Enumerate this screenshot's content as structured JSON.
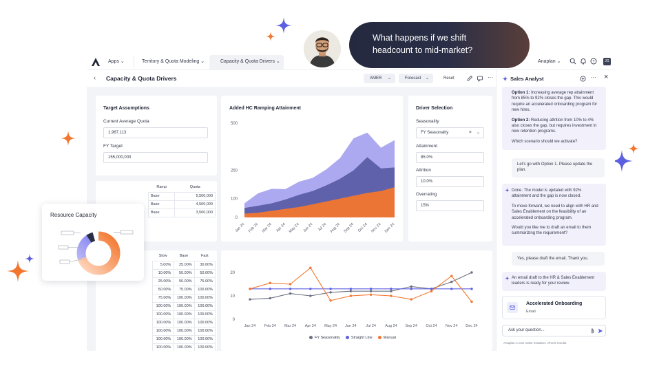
{
  "chat_bubble": {
    "text_line1": "What happens if we shift",
    "text_line2": "headcount to mid-market?"
  },
  "topbar": {
    "apps": "Apps",
    "breadcrumb_1": "Territory & Quota Modeling",
    "breadcrumb_2": "Capacity & Quota Drivers",
    "workspace": "Anaplan",
    "user_initials": "JG"
  },
  "pagebar": {
    "title": "Capacity & Quota Drivers",
    "region_select": "AMER",
    "scenario_select": "Forecast",
    "reset_label": "Reset"
  },
  "target_assumptions": {
    "title": "Target Assumptions",
    "quota_label": "Current Average Quota",
    "quota_value": "1,967,113",
    "target_label": "FY Target",
    "target_value": "155,000,000"
  },
  "ramp_table": {
    "headers": [
      "Ramp",
      "Quota"
    ],
    "rows": [
      [
        "Base",
        "5,500,000"
      ],
      [
        "Base",
        "4,500,000"
      ],
      [
        "Base",
        "3,500,000"
      ]
    ]
  },
  "pct_table": {
    "headers": [
      "Slow",
      "Base",
      "Fast"
    ],
    "rows": [
      [
        "5.00%",
        "25.00%",
        "30.00%"
      ],
      [
        "10.00%",
        "50.00%",
        "50.00%"
      ],
      [
        "25.00%",
        "50.00%",
        "75.00%"
      ],
      [
        "50.00%",
        "75.00%",
        "100.00%"
      ],
      [
        "75.00%",
        "100.00%",
        "100.00%"
      ],
      [
        "100.00%",
        "100.00%",
        "100.00%"
      ],
      [
        "100.00%",
        "100.00%",
        "100.00%"
      ],
      [
        "100.00%",
        "100.00%",
        "100.00%"
      ],
      [
        "100.00%",
        "100.00%",
        "100.00%"
      ],
      [
        "100.00%",
        "100.00%",
        "100.00%"
      ],
      [
        "100.00%",
        "100.00%",
        "100.00%"
      ]
    ]
  },
  "driver_selection": {
    "title": "Driver Selection",
    "seasonality_label": "Seasonality",
    "seasonality_value": "FY Seasonality",
    "attainment_label": "Attainment",
    "attainment_value": "85.0%",
    "attrition_label": "Attrition",
    "attrition_value": "10.0%",
    "overrating_label": "Overrating",
    "overrating_value": "15%"
  },
  "side_panel": {
    "title": "Sales Analyst",
    "m1_opt1_bold": "Option 1:",
    "m1_opt1_text": " Increasing average rep attainment from 85% to 92% closes the gap. This would require an accelerated onboarding program for new hires.",
    "m1_opt2_bold": "Option 2:",
    "m1_opt2_text": " Reducing attrition from 10% to 4% also closes the gap, but requires investment in new retention programs.",
    "m1_question": "Which scenario should we activate?",
    "u1": "Let's go with Option 1. Please update the plan.",
    "m2_p1": "Done. The model is updated with 92% attainment and the gap is now closed.",
    "m2_p2": "To move forward, we need to align with HR and Sales Enablement on the feasibility of an accelerated onboarding program.",
    "m2_p3": "Would you like me to draft an email to them summarizing the requirement?",
    "u2": "Yes, please draft the email. Thank you.",
    "m3": "An email draft to the HR & Sales Enablement leaders is ready for your review.",
    "attachment_title": "Accelerated Onboarding",
    "attachment_sub": "Email",
    "ask_placeholder": "Ask your question...",
    "disclaimer": "Anaplan AI can make mistakes. Check results."
  },
  "resource_capacity": {
    "title": "Resource Capacity"
  },
  "colors": {
    "accent": "#6366f1",
    "orange": "#f2762e",
    "navy": "#24293f"
  },
  "chart_data": [
    {
      "type": "area",
      "title": "Added HC Ramping Attainment",
      "categories": [
        "Jan 24",
        "Feb 24",
        "Mar 24",
        "Apr 24",
        "May 24",
        "Jun 24",
        "Jul 24",
        "Aug 24",
        "Sep 24",
        "Oct 24",
        "Nov 24",
        "Dec 24"
      ],
      "ylim": [
        0,
        500
      ],
      "yticks": [
        0,
        100,
        250,
        500
      ],
      "series": [
        {
          "values": [
            75,
            128,
            152,
            150,
            190,
            210,
            255,
            315,
            420,
            450,
            370,
            410
          ],
          "color": "#a9a4ef"
        },
        {
          "values": [
            50,
            62,
            75,
            95,
            120,
            140,
            170,
            205,
            250,
            320,
            260,
            265
          ],
          "color": "#5b5ea6"
        },
        {
          "values": [
            20,
            25,
            35,
            45,
            55,
            70,
            85,
            100,
            115,
            130,
            140,
            160
          ],
          "color": "#f2762e"
        }
      ]
    },
    {
      "type": "line",
      "categories": [
        "Jan 24",
        "Feb 24",
        "Mar 24",
        "Apr 24",
        "May 24",
        "Jun 24",
        "Jul 24",
        "Aug 24",
        "Sep 24",
        "Oct 24",
        "Nov 24",
        "Dec 24"
      ],
      "ylim": [
        0,
        20
      ],
      "yticks": [
        0,
        10,
        20
      ],
      "legend_position": "bottom",
      "series": [
        {
          "name": "FY Seasonality",
          "values": [
            8.5,
            9,
            11,
            10,
            11.5,
            12,
            12,
            12,
            14,
            13,
            16,
            20
          ],
          "color": "#6b7080"
        },
        {
          "name": "Straight Line",
          "values": [
            13,
            13,
            13,
            13,
            13,
            13,
            13,
            13,
            13,
            13,
            13,
            13
          ],
          "color": "#5c5fe0"
        },
        {
          "name": "Manual",
          "values": [
            13,
            15.5,
            15,
            22,
            8,
            10,
            10.5,
            10,
            8.5,
            12,
            18.5,
            7.5
          ],
          "color": "#f2762e"
        }
      ]
    }
  ]
}
